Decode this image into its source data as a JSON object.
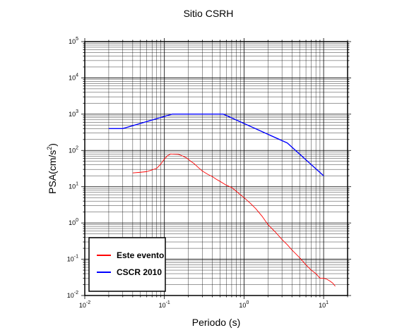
{
  "chart_data": {
    "type": "line",
    "title": "Sitio CSRH",
    "xlabel": "Periodo (s)",
    "ylabel_main": "PSA(cm/s",
    "ylabel_sup": "2",
    "ylabel_close": ")",
    "x_scale": "log",
    "y_scale": "log",
    "xlim": [
      0.01,
      20
    ],
    "ylim": [
      0.01,
      100000
    ],
    "grid": true,
    "legend_position": "bottom-left",
    "x_ticks": [
      {
        "base": "10",
        "exp": "-2",
        "value": 0.01
      },
      {
        "base": "10",
        "exp": "-1",
        "value": 0.1
      },
      {
        "base": "10",
        "exp": "0",
        "value": 1
      },
      {
        "base": "10",
        "exp": "1",
        "value": 10
      }
    ],
    "y_ticks": [
      {
        "base": "10",
        "exp": "-2",
        "value": 0.01
      },
      {
        "base": "10",
        "exp": "-1",
        "value": 0.1
      },
      {
        "base": "10",
        "exp": "0",
        "value": 1
      },
      {
        "base": "10",
        "exp": "1",
        "value": 10
      },
      {
        "base": "10",
        "exp": "2",
        "value": 100
      },
      {
        "base": "10",
        "exp": "3",
        "value": 1000
      },
      {
        "base": "10",
        "exp": "4",
        "value": 10000
      },
      {
        "base": "10",
        "exp": "5",
        "value": 100000
      }
    ],
    "series": [
      {
        "name": "Este evento",
        "color": "#ff0000",
        "x": [
          0.04,
          0.05,
          0.06,
          0.07,
          0.08,
          0.09,
          0.1,
          0.11,
          0.12,
          0.13,
          0.15,
          0.17,
          0.19,
          0.21,
          0.24,
          0.27,
          0.3,
          0.35,
          0.4,
          0.45,
          0.5,
          0.6,
          0.7,
          0.8,
          0.9,
          1.0,
          1.2,
          1.4,
          1.7,
          2.0,
          2.5,
          3.0,
          3.5,
          4.0,
          5.0,
          6.0,
          7.0,
          8.0,
          9.0,
          10.0,
          11.0,
          12.0,
          13.0,
          14.0
        ],
        "y": [
          24,
          25,
          26,
          29,
          32,
          42,
          58,
          72,
          80,
          79,
          78,
          70,
          62,
          52,
          42,
          33,
          27,
          22,
          19,
          16,
          14,
          11,
          9.5,
          7.5,
          6,
          5,
          3.5,
          2.5,
          1.5,
          0.9,
          0.55,
          0.35,
          0.25,
          0.18,
          0.11,
          0.07,
          0.05,
          0.04,
          0.03,
          0.03,
          0.028,
          0.025,
          0.022,
          0.018
        ]
      },
      {
        "name": "CSCR 2010",
        "color": "#0000ff",
        "x": [
          0.02,
          0.03,
          0.125,
          0.55,
          3.5,
          10
        ],
        "y": [
          400,
          400,
          1000,
          1000,
          160,
          20
        ]
      }
    ]
  }
}
